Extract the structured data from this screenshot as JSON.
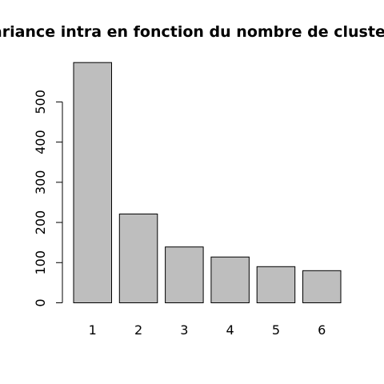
{
  "chart_data": {
    "type": "bar",
    "title": "variance intra en fonction du nombre de clusters",
    "xlabel": "",
    "ylabel": "",
    "categories": [
      "1",
      "2",
      "3",
      "4",
      "5",
      "6"
    ],
    "values": [
      598,
      221,
      139,
      114,
      90,
      80
    ],
    "ylim": [
      0,
      600
    ],
    "yticks": [
      "0",
      "100",
      "200",
      "300",
      "400",
      "500"
    ],
    "bar_fill": "#bebebe",
    "bar_stroke": "#000000",
    "grid": false,
    "legend": "none"
  }
}
